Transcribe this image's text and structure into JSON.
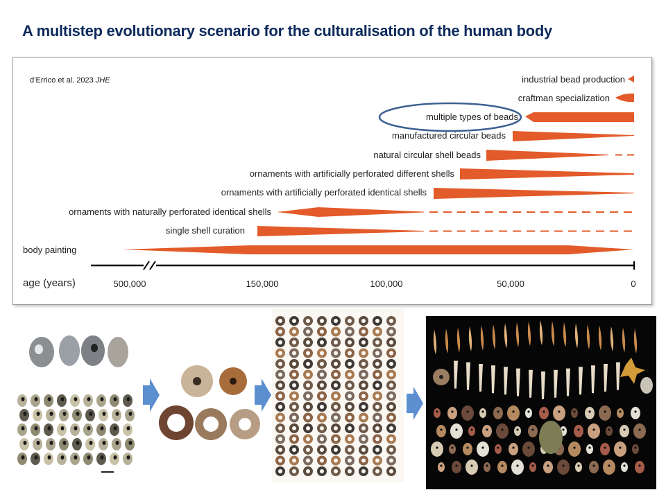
{
  "title": "A multistep evolutionary scenario for the culturalisation of the human body",
  "citation": {
    "authors": "d’Errico et al. 2023",
    "journal": "JHE"
  },
  "axis": {
    "label": "age (years)",
    "ticks": [
      "500,000",
      "150,000",
      "100,000",
      "50,000",
      "0"
    ]
  },
  "rows": [
    {
      "label": "industrial bead production"
    },
    {
      "label": "craftman specialization"
    },
    {
      "label": "multiple types of beads",
      "highlighted": true
    },
    {
      "label": "manufactured circular beads"
    },
    {
      "label": "natural circular shell beads"
    },
    {
      "label": "ornaments with artificially perforated different shells"
    },
    {
      "label": "ornaments with artificially perforated identical shells"
    },
    {
      "label": "ornaments with naturally perforated identical shells"
    },
    {
      "label": "single shell curation"
    },
    {
      "label": "body painting"
    }
  ],
  "colors": {
    "bar": "#e35b2a",
    "title": "#0d2a5c",
    "highlight_ellipse": "#3d6090",
    "arrow": "#5b8fd0"
  },
  "bottom_panels": [
    "perforated-shells-photo",
    "circular-shell-beads-photo",
    "manufactured-bead-grid-photo",
    "multiple-bead-types-photo"
  ]
}
